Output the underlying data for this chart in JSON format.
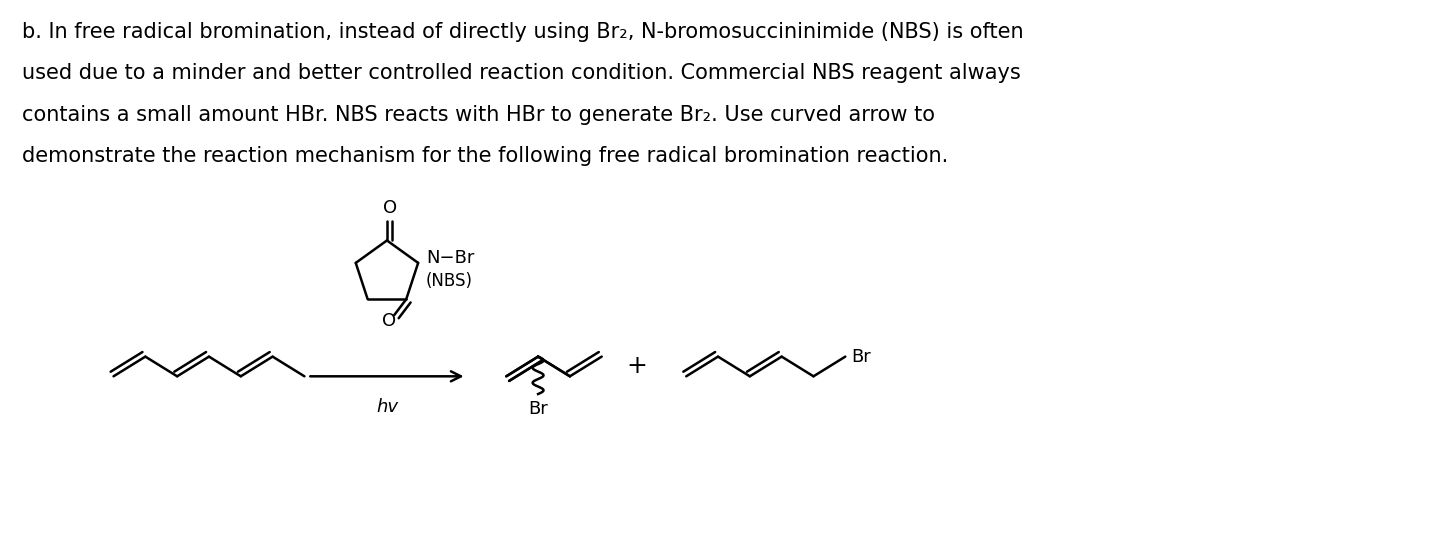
{
  "figsize": [
    14.48,
    5.38
  ],
  "dpi": 100,
  "bg_color": "#ffffff",
  "text_color": "#000000",
  "font_family": "DejaVu Sans",
  "paragraph": [
    "b. In free radical bromination, instead of directly using Br₂, N-bromosuccininimide (NBS) is often",
    "used due to a minder and better controlled reaction condition. Commercial NBS reagent always",
    "contains a small amount HBr. NBS reacts with HBr to generate Br₂. Use curved arrow to",
    "demonstrate the reaction mechanism for the following free radical bromination reaction."
  ],
  "font_size_text": 15.0,
  "lw": 1.8
}
